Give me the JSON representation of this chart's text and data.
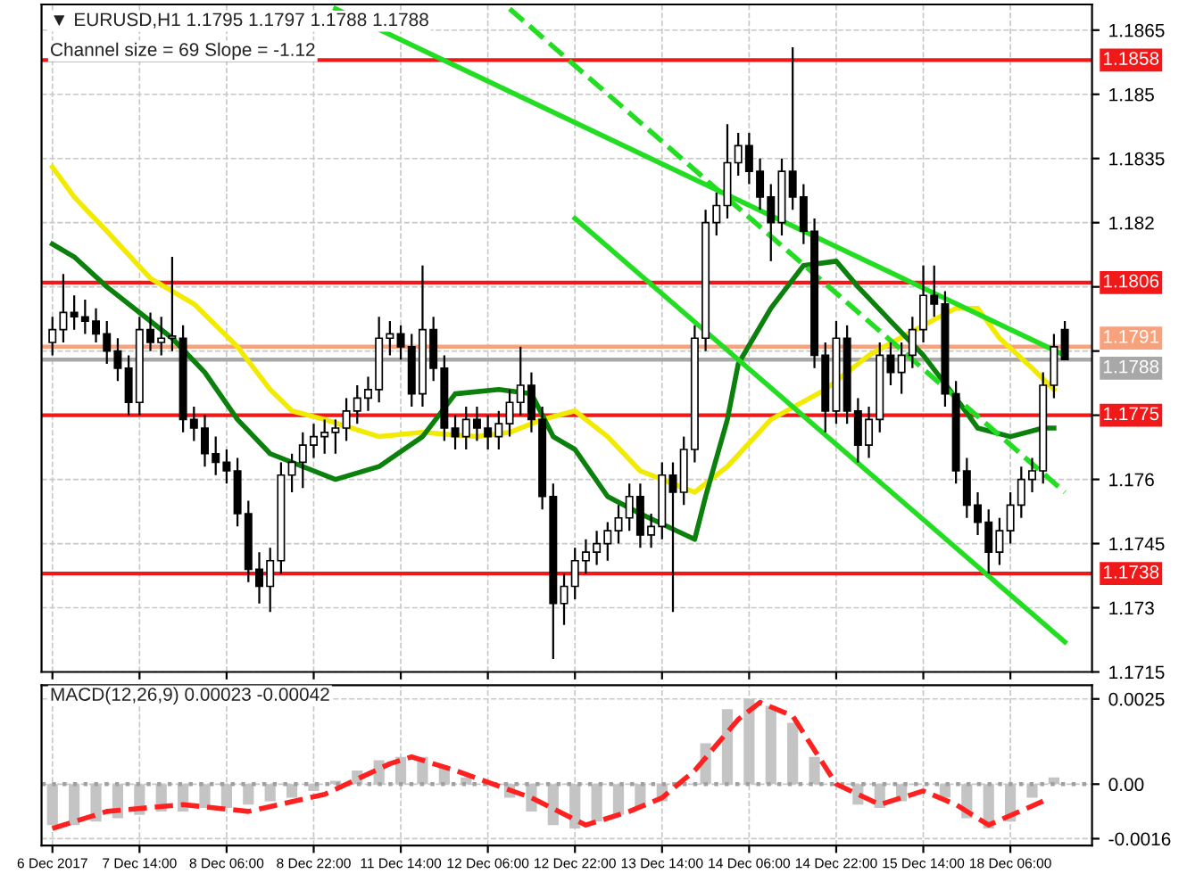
{
  "chart_data": [
    {
      "type": "candlestick",
      "annotations": [
        "▼ EURUSD,H1 1.1795 1.1797 1.1788 1.1788",
        "Channel size = 69 Slope = -1.12"
      ],
      "categories": [
        null,
        null,
        null,
        null,
        null,
        null,
        null,
        null,
        null,
        null,
        null,
        null,
        null,
        null,
        null,
        null,
        null,
        null,
        null,
        null,
        null,
        null,
        null,
        null,
        null,
        null,
        null,
        null,
        null,
        null,
        null,
        null,
        null,
        null,
        null,
        null,
        null,
        null,
        null,
        null,
        null,
        null,
        null,
        null,
        null,
        null,
        null,
        null,
        null,
        null,
        null,
        null,
        null,
        null,
        null,
        null,
        null,
        null,
        null,
        null,
        null,
        null,
        null,
        null,
        null,
        null,
        null,
        null,
        null,
        null,
        null,
        null,
        null,
        null,
        null,
        null,
        null,
        null,
        null,
        null,
        null,
        null,
        null,
        null,
        null,
        null,
        null,
        null,
        null,
        null,
        null,
        null,
        null,
        null
      ],
      "ohlc": [
        [
          1.1792,
          1.1798,
          1.1789,
          1.1795
        ],
        [
          1.1795,
          1.1808,
          1.1792,
          1.1799
        ],
        [
          1.1799,
          1.1803,
          1.1795,
          1.1798
        ],
        [
          1.1798,
          1.1802,
          1.1794,
          1.1797
        ],
        [
          1.1797,
          1.18,
          1.1792,
          1.1794
        ],
        [
          1.1794,
          1.1797,
          1.1787,
          1.179
        ],
        [
          1.179,
          1.1793,
          1.1783,
          1.1786
        ],
        [
          1.1786,
          1.1789,
          1.1775,
          1.1778
        ],
        [
          1.1778,
          1.1798,
          1.1775,
          1.1795
        ],
        [
          1.1795,
          1.1799,
          1.179,
          1.1792
        ],
        [
          1.1792,
          1.1798,
          1.1789,
          1.1793
        ],
        [
          1.1793,
          1.1812,
          1.179,
          1.1793
        ],
        [
          1.1793,
          1.1796,
          1.1771,
          1.1774
        ],
        [
          1.1774,
          1.1777,
          1.1769,
          1.1772
        ],
        [
          1.1772,
          1.1775,
          1.1763,
          1.1766
        ],
        [
          1.1766,
          1.177,
          1.1761,
          1.1764
        ],
        [
          1.1764,
          1.1767,
          1.1759,
          1.1762
        ],
        [
          1.1762,
          1.1765,
          1.1749,
          1.1752
        ],
        [
          1.1752,
          1.1755,
          1.1736,
          1.1739
        ],
        [
          1.1739,
          1.1743,
          1.1731,
          1.1735
        ],
        [
          1.1735,
          1.1744,
          1.1729,
          1.1741
        ],
        [
          1.1741,
          1.1764,
          1.1738,
          1.1761
        ],
        [
          1.1761,
          1.1766,
          1.1757,
          1.1764
        ],
        [
          1.1764,
          1.1771,
          1.1758,
          1.1768
        ],
        [
          1.1768,
          1.1773,
          1.1765,
          1.177
        ],
        [
          1.177,
          1.1774,
          1.1766,
          1.1771
        ],
        [
          1.1771,
          1.1774,
          1.1766,
          1.1772
        ],
        [
          1.1772,
          1.1779,
          1.1769,
          1.1776
        ],
        [
          1.1776,
          1.1782,
          1.1773,
          1.1779
        ],
        [
          1.1779,
          1.1784,
          1.1776,
          1.1781
        ],
        [
          1.1781,
          1.1798,
          1.1778,
          1.1793
        ],
        [
          1.1793,
          1.1797,
          1.1789,
          1.1794
        ],
        [
          1.1794,
          1.1796,
          1.1788,
          1.1791
        ],
        [
          1.1791,
          1.1794,
          1.1777,
          1.178
        ],
        [
          1.178,
          1.181,
          1.1777,
          1.1795
        ],
        [
          1.1795,
          1.1798,
          1.1783,
          1.1786
        ],
        [
          1.1786,
          1.1789,
          1.1769,
          1.1772
        ],
        [
          1.1772,
          1.1775,
          1.1767,
          1.177
        ],
        [
          1.177,
          1.1777,
          1.1767,
          1.1774
        ],
        [
          1.1774,
          1.1777,
          1.1769,
          1.1772
        ],
        [
          1.1772,
          1.1775,
          1.1767,
          1.177
        ],
        [
          1.177,
          1.1776,
          1.1767,
          1.1773
        ],
        [
          1.1773,
          1.1781,
          1.177,
          1.1778
        ],
        [
          1.1778,
          1.1791,
          1.1775,
          1.1782
        ],
        [
          1.1782,
          1.1785,
          1.1771,
          1.1774
        ],
        [
          1.1774,
          1.1777,
          1.1753,
          1.1756
        ],
        [
          1.1756,
          1.1759,
          1.1718,
          1.1731
        ],
        [
          1.1731,
          1.1738,
          1.1726,
          1.1735
        ],
        [
          1.1735,
          1.1744,
          1.1732,
          1.1741
        ],
        [
          1.1741,
          1.1746,
          1.1738,
          1.1743
        ],
        [
          1.1743,
          1.1748,
          1.174,
          1.1745
        ],
        [
          1.1745,
          1.175,
          1.1741,
          1.1748
        ],
        [
          1.1748,
          1.1754,
          1.1745,
          1.1751
        ],
        [
          1.1751,
          1.1759,
          1.1748,
          1.1756
        ],
        [
          1.1756,
          1.1759,
          1.1744,
          1.1747
        ],
        [
          1.1747,
          1.1752,
          1.1744,
          1.1749
        ],
        [
          1.1749,
          1.1764,
          1.1746,
          1.1761
        ],
        [
          1.1761,
          1.1764,
          1.1729,
          1.1757
        ],
        [
          1.1757,
          1.177,
          1.1754,
          1.1767
        ],
        [
          1.1767,
          1.1796,
          1.1764,
          1.1793
        ],
        [
          1.1793,
          1.1823,
          1.179,
          1.182
        ],
        [
          1.182,
          1.1827,
          1.1817,
          1.1824
        ],
        [
          1.1824,
          1.1843,
          1.1821,
          1.1834
        ],
        [
          1.1834,
          1.1841,
          1.1831,
          1.1838
        ],
        [
          1.1838,
          1.1841,
          1.1829,
          1.1832
        ],
        [
          1.1832,
          1.1835,
          1.1823,
          1.1826
        ],
        [
          1.1826,
          1.1829,
          1.1811,
          1.182
        ],
        [
          1.182,
          1.1835,
          1.1817,
          1.1832
        ],
        [
          1.1832,
          1.1861,
          1.1823,
          1.1826
        ],
        [
          1.1826,
          1.1829,
          1.1815,
          1.1818
        ],
        [
          1.1818,
          1.1821,
          1.1786,
          1.1789
        ],
        [
          1.1789,
          1.1792,
          1.1771,
          1.1776
        ],
        [
          1.1776,
          1.1797,
          1.1773,
          1.1793
        ],
        [
          1.1793,
          1.1796,
          1.1773,
          1.1776
        ],
        [
          1.1776,
          1.1779,
          1.1764,
          1.1768
        ],
        [
          1.1768,
          1.1777,
          1.1765,
          1.1774
        ],
        [
          1.1774,
          1.1792,
          1.1771,
          1.1789
        ],
        [
          1.1789,
          1.1792,
          1.1782,
          1.1785
        ],
        [
          1.1785,
          1.1792,
          1.178,
          1.1789
        ],
        [
          1.1789,
          1.1798,
          1.1786,
          1.1795
        ],
        [
          1.1795,
          1.181,
          1.1792,
          1.1803
        ],
        [
          1.1803,
          1.181,
          1.1798,
          1.1801
        ],
        [
          1.1801,
          1.1804,
          1.1777,
          1.178
        ],
        [
          1.178,
          1.1783,
          1.1759,
          1.1762
        ],
        [
          1.1762,
          1.1765,
          1.1751,
          1.1754
        ],
        [
          1.1754,
          1.1757,
          1.1747,
          1.175
        ],
        [
          1.175,
          1.1753,
          1.1738,
          1.1743
        ],
        [
          1.1743,
          1.1751,
          1.174,
          1.1748
        ],
        [
          1.1748,
          1.1757,
          1.1745,
          1.1754
        ],
        [
          1.1754,
          1.1763,
          1.1751,
          1.176
        ],
        [
          1.176,
          1.1765,
          1.1757,
          1.1762
        ],
        [
          1.1762,
          1.1785,
          1.1759,
          1.1782
        ],
        [
          1.1782,
          1.1794,
          1.1779,
          1.1791
        ],
        [
          1.1795,
          1.1797,
          1.1788,
          1.1788
        ]
      ],
      "series": [
        {
          "type": "line",
          "color": "#f2ea00",
          "values": [
            1.1833,
            null,
            1.1826,
            null,
            null,
            1.1818,
            null,
            null,
            null,
            1.1807,
            null,
            null,
            null,
            1.1801,
            null,
            null,
            null,
            1.1791,
            null,
            null,
            1.1781,
            null,
            1.1776,
            null,
            null,
            1.1774,
            null,
            null,
            null,
            null,
            1.177,
            null,
            null,
            null,
            1.1771,
            null,
            null,
            null,
            null,
            1.177,
            null,
            null,
            1.1771,
            null,
            null,
            1.1774,
            null,
            null,
            1.1776,
            null,
            null,
            1.177,
            null,
            null,
            1.1762,
            null,
            null,
            null,
            null,
            1.1757,
            null,
            null,
            1.1763,
            null,
            null,
            null,
            1.1774,
            null,
            null,
            null,
            null,
            1.1781,
            null,
            null,
            null,
            1.1789,
            null,
            null,
            null,
            null,
            1.1796,
            null,
            null,
            1.18,
            null,
            1.18,
            null,
            1.1793,
            null,
            null,
            1.1786,
            null,
            1.1781,
            null
          ]
        },
        {
          "type": "line",
          "color": "#0c800c",
          "values": [
            1.1815,
            null,
            1.1812,
            null,
            null,
            1.1805,
            null,
            null,
            1.1799,
            null,
            null,
            1.1793,
            null,
            null,
            1.1785,
            null,
            null,
            1.1774,
            null,
            null,
            1.1766,
            null,
            null,
            null,
            1.1762,
            null,
            1.176,
            null,
            null,
            null,
            1.1763,
            null,
            null,
            null,
            1.177,
            null,
            null,
            1.178,
            null,
            null,
            null,
            1.1781,
            null,
            null,
            1.178,
            null,
            1.177,
            null,
            1.1767,
            null,
            null,
            1.1756,
            null,
            null,
            1.1752,
            null,
            null,
            null,
            null,
            1.1746,
            1.1756,
            null,
            1.1774,
            1.1787,
            null,
            null,
            1.18,
            null,
            null,
            1.181,
            null,
            null,
            1.1811,
            null,
            1.1805,
            null,
            null,
            1.1797,
            null,
            null,
            1.1789,
            null,
            null,
            1.1779,
            null,
            1.1772,
            null,
            null,
            1.177,
            null,
            null,
            1.1772,
            1.1772,
            null
          ]
        },
        {
          "type": "line",
          "color": "#22dd22",
          "values": [
            null,
            null,
            null,
            null,
            null,
            null,
            null,
            null,
            null,
            null,
            null,
            null,
            null,
            null,
            null,
            null,
            null,
            null,
            null,
            null,
            null,
            null,
            null,
            null,
            null,
            null,
            1.187,
            null,
            null,
            null,
            null,
            null,
            null,
            null,
            null,
            null,
            null,
            null,
            null,
            null,
            null,
            null,
            null,
            null,
            null,
            null,
            null,
            null,
            null,
            null,
            null,
            null,
            null,
            null,
            null,
            null,
            null,
            null,
            null,
            null,
            null,
            null,
            null,
            null,
            null,
            null,
            null,
            null,
            null,
            null,
            null,
            null,
            null,
            null,
            null,
            null,
            null,
            null,
            null,
            null,
            null,
            null,
            null,
            null,
            null,
            null,
            null,
            null,
            null,
            null,
            null,
            null,
            null,
            1.1789
          ]
        },
        {
          "type": "line",
          "color": "#22dd22",
          "values": [
            null,
            null,
            null,
            null,
            null,
            null,
            null,
            null,
            null,
            null,
            null,
            null,
            null,
            null,
            null,
            null,
            null,
            null,
            null,
            null,
            null,
            null,
            null,
            null,
            null,
            null,
            null,
            null,
            null,
            null,
            null,
            null,
            null,
            null,
            null,
            null,
            null,
            null,
            null,
            null,
            null,
            null,
            null,
            null,
            null,
            null,
            null,
            null,
            1.1821,
            null,
            null,
            null,
            null,
            null,
            null,
            null,
            null,
            null,
            null,
            null,
            null,
            null,
            null,
            null,
            null,
            null,
            null,
            null,
            null,
            null,
            null,
            null,
            null,
            null,
            null,
            null,
            null,
            null,
            null,
            null,
            null,
            null,
            null,
            null,
            null,
            null,
            null,
            null,
            null,
            null,
            null,
            null,
            null,
            1.1722
          ]
        },
        {
          "type": "line",
          "color": "#22dd22",
          "line_style": "dashed",
          "values": [
            null,
            null,
            null,
            null,
            null,
            null,
            null,
            null,
            null,
            null,
            null,
            null,
            null,
            null,
            null,
            null,
            null,
            null,
            null,
            null,
            null,
            null,
            null,
            null,
            null,
            null,
            null,
            null,
            null,
            null,
            null,
            null,
            null,
            null,
            null,
            null,
            null,
            null,
            null,
            null,
            null,
            null,
            1.187,
            null,
            null,
            null,
            null,
            null,
            null,
            null,
            null,
            null,
            null,
            null,
            null,
            null,
            null,
            null,
            null,
            null,
            null,
            null,
            null,
            null,
            null,
            null,
            null,
            null,
            null,
            null,
            null,
            null,
            null,
            null,
            null,
            null,
            null,
            null,
            null,
            null,
            null,
            null,
            null,
            null,
            null,
            null,
            null,
            null,
            null,
            null,
            null,
            null,
            null,
            1.1757
          ]
        }
      ],
      "ylim": [
        1.1715,
        1.1871
      ],
      "yticks": [
        1.1715,
        1.173,
        1.1745,
        1.176,
        {
          "value": 1.1775,
          "label": null
        },
        {
          "value": 1.179,
          "label": null
        },
        {
          "value": 1.1805,
          "label": null
        },
        1.182,
        1.1835,
        1.185,
        1.1865
      ],
      "ref_lines": [
        {
          "axis": "y",
          "value": 1.1858,
          "label": "1.1858",
          "color": "#f01818"
        },
        {
          "axis": "y",
          "value": 1.1806,
          "label": "1.1806",
          "color": "#f01818"
        },
        {
          "axis": "y",
          "value": 1.1791,
          "label": "1.1791",
          "color": "#f7a27c"
        },
        {
          "axis": "y",
          "value": 1.1788,
          "label": "1.1788",
          "color": "#a8a8a8"
        },
        {
          "axis": "y",
          "value": 1.1775,
          "label": "1.1775",
          "color": "#f01818"
        },
        {
          "axis": "y",
          "value": 1.1738,
          "label": "1.1738",
          "color": "#f01818"
        }
      ],
      "grid": true,
      "legend": false
    },
    {
      "type": "bar",
      "annotations": [
        "MACD(12,26,9) 0.00023 -0.00042"
      ],
      "categories": [
        "6 Dec 2017",
        null,
        null,
        null,
        null,
        null,
        null,
        null,
        "7 Dec 14:00",
        null,
        null,
        null,
        null,
        null,
        null,
        null,
        "8 Dec 06:00",
        null,
        null,
        null,
        null,
        null,
        null,
        null,
        "8 Dec 22:00",
        null,
        null,
        null,
        null,
        null,
        null,
        null,
        "11 Dec 14:00",
        null,
        null,
        null,
        null,
        null,
        null,
        null,
        "12 Dec 06:00",
        null,
        null,
        null,
        null,
        null,
        null,
        null,
        "12 Dec 22:00",
        null,
        null,
        null,
        null,
        null,
        null,
        null,
        "13 Dec 14:00",
        null,
        null,
        null,
        null,
        null,
        null,
        null,
        "14 Dec 06:00",
        null,
        null,
        null,
        null,
        null,
        null,
        null,
        "14 Dec 22:00",
        null,
        null,
        null,
        null,
        null,
        null,
        null,
        "15 Dec 14:00",
        null,
        null,
        null,
        null,
        null,
        null,
        null,
        "18 Dec 06:00",
        null,
        null,
        null,
        null,
        null
      ],
      "series": [
        {
          "type": "bar",
          "color": "#c4c4c4",
          "values": [
            -0.0012,
            null,
            -0.0012,
            null,
            -0.0011,
            null,
            -0.001,
            null,
            -0.0009,
            null,
            -0.0008,
            null,
            -0.0008,
            null,
            -0.0007,
            null,
            -0.0007,
            null,
            -0.0006,
            null,
            -0.0005,
            null,
            -0.0004,
            null,
            -0.0002,
            null,
            0.0001,
            null,
            0.0004,
            null,
            0.0007,
            null,
            0.0008,
            null,
            0.0008,
            null,
            0.0005,
            null,
            0.0002,
            null,
            null,
            null,
            -0.0004,
            null,
            -0.0008,
            null,
            -0.0012,
            null,
            -0.0013,
            null,
            -0.0011,
            null,
            -0.0009,
            null,
            -0.0007,
            null,
            -0.0005,
            null,
            null,
            null,
            0.0012,
            null,
            0.0022,
            null,
            0.0025,
            null,
            0.0023,
            null,
            0.0018,
            null,
            0.0008,
            null,
            null,
            null,
            -0.0006,
            null,
            -0.0007,
            null,
            -0.0005,
            null,
            null,
            null,
            -0.0004,
            null,
            -0.001,
            null,
            -0.0013,
            null,
            -0.0011,
            null,
            -0.0004,
            null,
            0.0002,
            null
          ]
        },
        {
          "type": "line",
          "color": "#ff2020",
          "line_style": "dashed",
          "values": [
            -0.0013,
            null,
            null,
            null,
            null,
            -0.0008,
            null,
            null,
            null,
            null,
            null,
            null,
            -0.0006,
            null,
            null,
            null,
            null,
            null,
            -0.0008,
            null,
            null,
            null,
            null,
            null,
            null,
            -0.0003,
            null,
            null,
            null,
            null,
            null,
            0.0006,
            null,
            0.0008,
            null,
            null,
            null,
            0.0004,
            null,
            null,
            null,
            null,
            null,
            null,
            -0.0004,
            null,
            null,
            null,
            null,
            -0.0012,
            null,
            null,
            null,
            -0.0008,
            null,
            null,
            -0.0004,
            null,
            null,
            0.0004,
            null,
            null,
            null,
            0.0019,
            null,
            0.0024,
            null,
            null,
            0.002,
            null,
            null,
            null,
            0.0,
            null,
            null,
            null,
            -0.0006,
            null,
            null,
            null,
            -0.0002,
            null,
            null,
            -0.0006,
            null,
            null,
            -0.0012,
            null,
            null,
            null,
            null,
            -0.0005,
            null,
            null
          ]
        }
      ],
      "ylim": [
        -0.0018,
        0.0029
      ],
      "yticks": [
        -0.0016,
        {
          "value": 0,
          "label": "0.00"
        },
        0.0025
      ],
      "ref_lines": [
        {
          "axis": "y",
          "value": 0,
          "color": "#a0a0a0",
          "line_style": "dotted"
        }
      ],
      "grid": true,
      "legend": false
    }
  ]
}
